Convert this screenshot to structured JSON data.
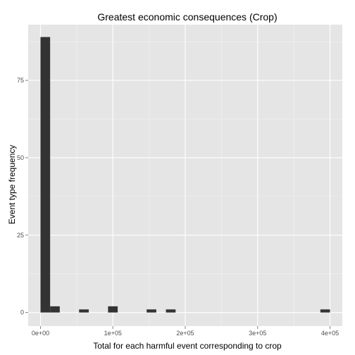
{
  "chart_data": {
    "type": "bar",
    "title": "Greatest economic consequences (Crop)",
    "xlabel": "Total for each harmful event corresponding to crop",
    "ylabel": "Event type frequency",
    "xlim": [
      -17000,
      417000
    ],
    "ylim": [
      -4.4,
      93
    ],
    "x_ticks": [
      {
        "value": 0,
        "label": "0e+00"
      },
      {
        "value": 100000,
        "label": "1e+05"
      },
      {
        "value": 200000,
        "label": "2e+05"
      },
      {
        "value": 300000,
        "label": "3e+05"
      },
      {
        "value": 400000,
        "label": "4e+05"
      }
    ],
    "y_ticks": [
      {
        "value": 0,
        "label": "0"
      },
      {
        "value": 25,
        "label": "25"
      },
      {
        "value": 50,
        "label": "50"
      },
      {
        "value": 75,
        "label": "75"
      }
    ],
    "bin_width": 13333,
    "bins": [
      {
        "start": 0,
        "count": 89
      },
      {
        "start": 13333,
        "count": 2
      },
      {
        "start": 53333,
        "count": 1
      },
      {
        "start": 93333,
        "count": 2
      },
      {
        "start": 146667,
        "count": 1
      },
      {
        "start": 173333,
        "count": 1
      },
      {
        "start": 386667,
        "count": 1
      }
    ],
    "grid": true,
    "colors": {
      "panel_bg": "#e5e5e5",
      "grid_major": "#ffffff",
      "grid_minor": "#f2f2f2",
      "bar_fill": "#333333"
    }
  }
}
